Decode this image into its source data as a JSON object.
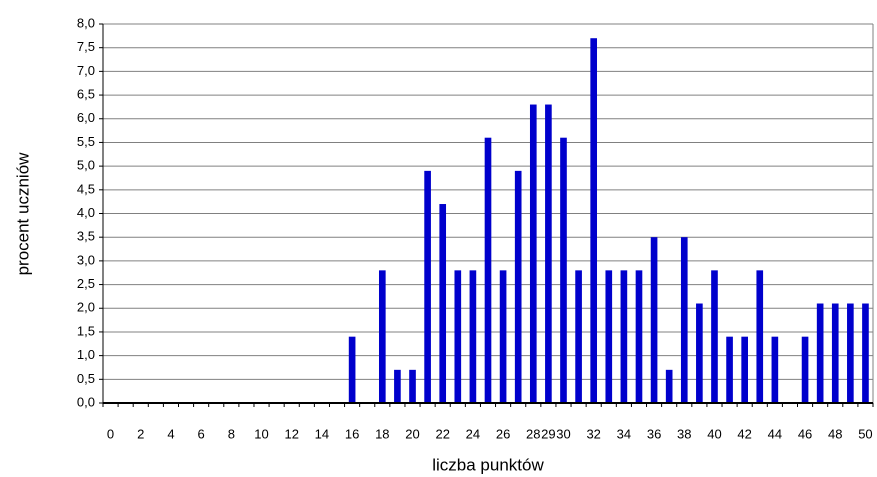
{
  "chart_data": {
    "type": "bar",
    "x_label": "liczba punktów",
    "y_label": "procent uczniów",
    "categories": [
      "0",
      null,
      "2",
      null,
      "4",
      null,
      "6",
      null,
      "8",
      null,
      "10",
      null,
      "12",
      null,
      "14",
      null,
      "16",
      null,
      "18",
      null,
      "20",
      null,
      "22",
      null,
      "24",
      null,
      "26",
      null,
      "28",
      "29",
      "30",
      null,
      "32",
      null,
      "34",
      null,
      "36",
      null,
      "38",
      null,
      "40",
      null,
      "42",
      null,
      "44",
      null,
      "46",
      null,
      "48",
      null,
      "50"
    ],
    "values": [
      0,
      0,
      0,
      0,
      0,
      0,
      0,
      0,
      0,
      0,
      0,
      0,
      0,
      0,
      0,
      0,
      1.4,
      0,
      2.8,
      0.7,
      0.7,
      4.9,
      4.2,
      2.8,
      2.8,
      5.6,
      2.8,
      4.9,
      6.3,
      6.3,
      5.6,
      2.8,
      7.7,
      2.8,
      2.8,
      2.8,
      3.5,
      0.7,
      3.5,
      2.1,
      2.8,
      1.4,
      1.4,
      2.8,
      1.4,
      0,
      1.4,
      2.1,
      2.1,
      2.1,
      2.1
    ],
    "color": "#0000cc",
    "ylim": [
      0,
      8
    ],
    "yticks": [
      {
        "value": 0,
        "label": "0,0"
      },
      {
        "value": 0.5,
        "label": "0,5"
      },
      {
        "value": 1,
        "label": "1,0"
      },
      {
        "value": 1.5,
        "label": "1,5"
      },
      {
        "value": 2,
        "label": "2,0"
      },
      {
        "value": 2.5,
        "label": "2,5"
      },
      {
        "value": 3,
        "label": "3,0"
      },
      {
        "value": 3.5,
        "label": "3,5"
      },
      {
        "value": 4,
        "label": "4,0"
      },
      {
        "value": 4.5,
        "label": "4,5"
      },
      {
        "value": 5,
        "label": "5,0"
      },
      {
        "value": 5.5,
        "label": "5,5"
      },
      {
        "value": 6,
        "label": "6,0"
      },
      {
        "value": 6.5,
        "label": "6,5"
      },
      {
        "value": 7,
        "label": "7,0"
      },
      {
        "value": 7.5,
        "label": "7,5"
      },
      {
        "value": 8,
        "label": "8,0"
      }
    ],
    "grid": true
  }
}
